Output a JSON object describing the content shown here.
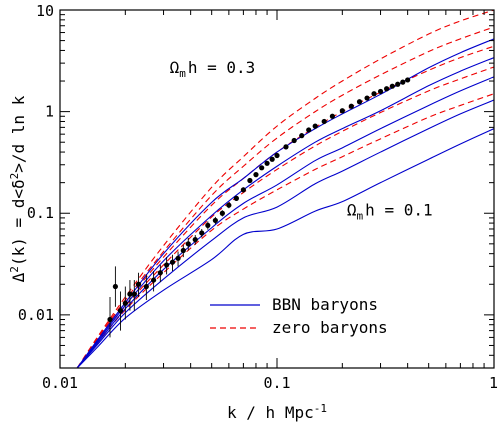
{
  "chart_data": {
    "type": "line",
    "xscale": "log",
    "yscale": "log",
    "xlim": [
      0.01,
      1
    ],
    "ylim": [
      0.003,
      10
    ],
    "xlabel": "k / h Mpc",
    "xlabel_sup": "-1",
    "ylabel": {
      "a": "Δ",
      "a_sup": "2",
      "b": "(k) = d<δ",
      "b_sup": "2",
      "c": ">/d ln k"
    },
    "x_ticks": [
      {
        "value": 0.01,
        "label": "0.01"
      },
      {
        "value": 0.1,
        "label": "0.1"
      },
      {
        "value": 1,
        "label": "1"
      }
    ],
    "y_ticks": [
      {
        "value": 0.01,
        "label": "0.01"
      },
      {
        "value": 0.1,
        "label": "0.1"
      },
      {
        "value": 1,
        "label": "1"
      },
      {
        "value": 10,
        "label": "10"
      }
    ],
    "annotations": {
      "top": {
        "pre": "Ω",
        "sub": "m",
        "post": "h = 0.3",
        "x": 0.032,
        "y": 2.4
      },
      "bottom": {
        "pre": "Ω",
        "sub": "m",
        "post": "h = 0.1",
        "x": 0.21,
        "y": 0.095
      }
    },
    "legend": {
      "position": "bottom-right",
      "entries": [
        {
          "label": "BBN baryons",
          "style": "solid",
          "color": "#0000cc"
        },
        {
          "label": "zero baryons",
          "style": "dashed",
          "color": "#ee0000"
        }
      ]
    },
    "model_family": {
      "count": 5,
      "note_shape": "power-law rising curves",
      "bbn_baryons": {
        "color": "#0000cc",
        "k": [
          0.012,
          0.015,
          0.02,
          0.03,
          0.05,
          0.07,
          0.1,
          0.15,
          0.2,
          0.3,
          0.5,
          0.7,
          1.0
        ],
        "curves": [
          [
            0.003,
            0.0058,
            0.0132,
            0.04,
            0.128,
            0.22,
            0.4,
            0.68,
            0.95,
            1.48,
            2.7,
            3.8,
            5.2
          ],
          [
            0.003,
            0.0056,
            0.0124,
            0.034,
            0.095,
            0.17,
            0.29,
            0.5,
            0.68,
            1.02,
            1.8,
            2.5,
            3.4
          ],
          [
            0.003,
            0.0054,
            0.0115,
            0.028,
            0.072,
            0.125,
            0.19,
            0.33,
            0.44,
            0.68,
            1.15,
            1.6,
            2.2
          ],
          [
            0.003,
            0.0052,
            0.0105,
            0.0225,
            0.054,
            0.09,
            0.115,
            0.195,
            0.26,
            0.4,
            0.68,
            0.95,
            1.3
          ],
          [
            0.003,
            0.0049,
            0.0093,
            0.0175,
            0.035,
            0.062,
            0.07,
            0.105,
            0.13,
            0.2,
            0.34,
            0.48,
            0.68
          ]
        ]
      },
      "zero_baryons": {
        "color": "#ee0000",
        "k": [
          0.012,
          0.015,
          0.02,
          0.03,
          0.05,
          0.07,
          0.1,
          0.15,
          0.2,
          0.3,
          0.5,
          0.7,
          1.0
        ],
        "curves": [
          [
            0.003,
            0.0062,
            0.015,
            0.048,
            0.18,
            0.36,
            0.72,
            1.35,
            2.0,
            3.3,
            5.8,
            7.8,
            10.0
          ],
          [
            0.003,
            0.006,
            0.014,
            0.042,
            0.15,
            0.29,
            0.55,
            1.0,
            1.45,
            2.3,
            3.9,
            5.2,
            6.8
          ],
          [
            0.003,
            0.0058,
            0.0132,
            0.037,
            0.12,
            0.22,
            0.4,
            0.7,
            1.0,
            1.55,
            2.55,
            3.4,
            4.4
          ],
          [
            0.003,
            0.0056,
            0.0122,
            0.031,
            0.092,
            0.16,
            0.27,
            0.46,
            0.64,
            0.98,
            1.6,
            2.1,
            2.75
          ],
          [
            0.003,
            0.0054,
            0.0112,
            0.026,
            0.068,
            0.11,
            0.17,
            0.27,
            0.36,
            0.54,
            0.88,
            1.15,
            1.5
          ]
        ]
      }
    },
    "observed_points": {
      "color": "#000000",
      "k": [
        0.017,
        0.018,
        0.019,
        0.02,
        0.021,
        0.022,
        0.023,
        0.025,
        0.027,
        0.029,
        0.031,
        0.033,
        0.035,
        0.037,
        0.039,
        0.042,
        0.045,
        0.048,
        0.052,
        0.056,
        0.06,
        0.065,
        0.07,
        0.075,
        0.08,
        0.085,
        0.09,
        0.095,
        0.1,
        0.11,
        0.12,
        0.13,
        0.14,
        0.15,
        0.165,
        0.18,
        0.2,
        0.22,
        0.24,
        0.26,
        0.28,
        0.3,
        0.32,
        0.34,
        0.36,
        0.38,
        0.4
      ],
      "y": [
        0.009,
        0.019,
        0.011,
        0.013,
        0.016,
        0.016,
        0.02,
        0.019,
        0.022,
        0.026,
        0.031,
        0.033,
        0.036,
        0.043,
        0.05,
        0.055,
        0.064,
        0.076,
        0.085,
        0.1,
        0.12,
        0.14,
        0.17,
        0.21,
        0.24,
        0.28,
        0.31,
        0.34,
        0.37,
        0.45,
        0.52,
        0.58,
        0.66,
        0.72,
        0.8,
        0.9,
        1.02,
        1.13,
        1.25,
        1.36,
        1.5,
        1.58,
        1.68,
        1.78,
        1.86,
        1.95,
        2.05
      ],
      "err_lo": [
        0.006,
        0.012,
        0.007,
        0.009,
        0.011,
        0.011,
        0.015,
        0.014,
        0.017,
        0.021,
        0.025,
        0.027,
        0.03,
        0.037,
        0.043,
        0.049,
        0.058,
        0.069,
        0.078,
        0.093,
        0.112,
        0.132,
        0.16,
        0.2,
        0.23,
        0.27,
        0.3,
        0.33,
        0.36,
        0.44,
        0.51,
        0.57,
        0.65,
        0.71,
        0.79,
        0.89,
        1.0,
        1.11,
        1.23,
        1.34,
        1.48,
        1.56,
        1.66,
        1.76,
        1.84,
        1.93,
        2.02
      ],
      "err_hi": [
        0.015,
        0.03,
        0.017,
        0.019,
        0.022,
        0.022,
        0.026,
        0.025,
        0.027,
        0.031,
        0.037,
        0.039,
        0.042,
        0.049,
        0.057,
        0.061,
        0.07,
        0.083,
        0.092,
        0.107,
        0.128,
        0.148,
        0.18,
        0.22,
        0.25,
        0.29,
        0.32,
        0.35,
        0.38,
        0.46,
        0.53,
        0.59,
        0.67,
        0.73,
        0.81,
        0.91,
        1.04,
        1.15,
        1.27,
        1.38,
        1.52,
        1.6,
        1.7,
        1.8,
        1.88,
        1.97,
        2.08
      ]
    }
  }
}
